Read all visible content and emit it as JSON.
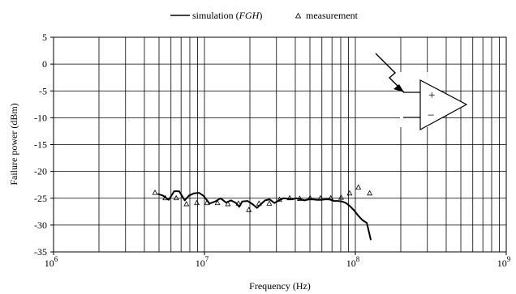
{
  "chart_data": {
    "type": "line",
    "xlabel": "Frequency (Hz)",
    "ylabel": "Failure power (dBm)",
    "x_scale": "log",
    "xlim": [
      1000000,
      1000000000
    ],
    "ylim": [
      -35,
      5
    ],
    "grid": true,
    "legend_position": "top-center",
    "x_ticks": [
      {
        "base": "10",
        "exp": "6",
        "value": 1000000
      },
      {
        "base": "10",
        "exp": "7",
        "value": 10000000
      },
      {
        "base": "10",
        "exp": "8",
        "value": 100000000
      },
      {
        "base": "10",
        "exp": "9",
        "value": 1000000000
      }
    ],
    "y_ticks": [
      5,
      0,
      -5,
      -10,
      -15,
      -20,
      -25,
      -30,
      -35
    ],
    "series": [
      {
        "name": "simulation (FGH)",
        "legend_parts": [
          "simulation (",
          "FGH",
          ")"
        ],
        "style": "line",
        "color": "#000000",
        "x": [
          4900000,
          5300000,
          5800000,
          6300000,
          6800000,
          7400000,
          7900000,
          8500000,
          9200000,
          9900000,
          10800000,
          11800000,
          12800000,
          13900000,
          15000000,
          16200000,
          17000000,
          17800000,
          19300000,
          20800000,
          22300000,
          23700000,
          25200000,
          27000000,
          29100000,
          31200000,
          33400000,
          35700000,
          38100000,
          40600000,
          43300000,
          46100000,
          49100000,
          52300000,
          55700000,
          59300000,
          63200000,
          67300000,
          71700000,
          76400000,
          81400000,
          86700000,
          92300000,
          98400000,
          104800000,
          111600000,
          119000000,
          126700000
        ],
        "y": [
          -24.2,
          -24.5,
          -25.3,
          -23.7,
          -23.7,
          -25.4,
          -24.5,
          -24.1,
          -24.0,
          -24.6,
          -26.0,
          -25.6,
          -25.0,
          -25.8,
          -25.4,
          -25.9,
          -26.6,
          -25.6,
          -25.5,
          -26.1,
          -26.8,
          -26.1,
          -25.4,
          -25.2,
          -25.9,
          -25.4,
          -25.0,
          -25.1,
          -25.2,
          -25.0,
          -25.2,
          -25.4,
          -25.2,
          -25.2,
          -25.3,
          -25.3,
          -25.2,
          -25.2,
          -25.5,
          -25.5,
          -25.6,
          -25.9,
          -26.5,
          -27.3,
          -28.3,
          -29.1,
          -29.6,
          -32.8
        ]
      },
      {
        "name": "measurement",
        "style": "marker",
        "marker": "triangle",
        "color": "#000000",
        "x": [
          4700000,
          5500000,
          6500000,
          7600000,
          8900000,
          10400000,
          12200000,
          14300000,
          16800000,
          19700000,
          23000000,
          26900000,
          31400000,
          36700000,
          42800000,
          50100000,
          58700000,
          68700000,
          80500000,
          91600000,
          104700000,
          124400000
        ],
        "y": [
          -24.0,
          -25.0,
          -25.0,
          -26.1,
          -25.9,
          -25.9,
          -25.9,
          -26.1,
          -26.0,
          -27.2,
          -26.0,
          -26.0,
          -25.3,
          -25.0,
          -25.1,
          -25.0,
          -25.0,
          -25.0,
          -24.9,
          -24.1,
          -23.0,
          -24.1
        ]
      }
    ],
    "inset_icon": {
      "name": "op-amp-with-lightning-arrow",
      "plus_label": "+",
      "minus_label": "−"
    }
  }
}
